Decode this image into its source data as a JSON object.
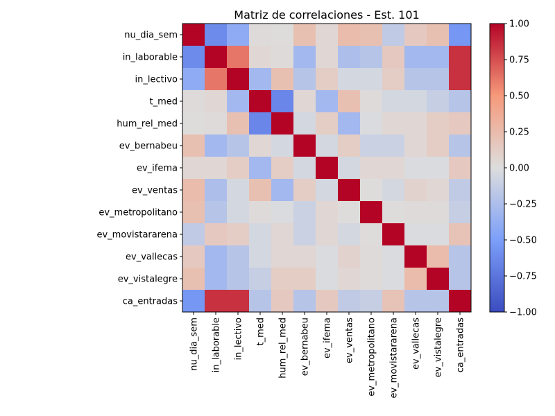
{
  "chart_data": {
    "type": "heatmap",
    "title": "Matriz de correlaciones - Est. 101",
    "xlabel": "",
    "ylabel": "",
    "colormap": "coolwarm",
    "vmin": -1.0,
    "vmax": 1.0,
    "colorbar_ticks": [
      "1.00",
      "0.75",
      "0.50",
      "0.25",
      "0.00",
      "−0.25",
      "−0.50",
      "−0.75",
      "−1.00"
    ],
    "colorbar_tick_values": [
      1.0,
      0.75,
      0.5,
      0.25,
      0.0,
      -0.25,
      -0.5,
      -0.75,
      -1.0
    ],
    "labels": [
      "nu_dia_sem",
      "in_laborable",
      "in_lectivo",
      "t_med",
      "hum_rel_med",
      "ev_bernabeu",
      "ev_ifema",
      "ev_ventas",
      "ev_metropolitano",
      "ev_movistararena",
      "ev_vallecas",
      "ev_vistalegre",
      "ca_entradas"
    ],
    "matrix": [
      [
        1.0,
        -0.62,
        -0.4,
        0.02,
        0.01,
        0.22,
        0.05,
        0.25,
        0.22,
        -0.15,
        0.15,
        0.22,
        -0.55
      ],
      [
        -0.62,
        1.0,
        0.62,
        0.05,
        0.02,
        -0.3,
        0.05,
        -0.25,
        -0.2,
        0.15,
        -0.3,
        -0.3,
        0.85
      ],
      [
        -0.4,
        0.62,
        1.0,
        -0.3,
        0.22,
        -0.2,
        0.12,
        -0.05,
        -0.05,
        0.12,
        -0.2,
        -0.2,
        0.85
      ],
      [
        0.02,
        0.05,
        -0.3,
        1.0,
        -0.65,
        0.05,
        -0.3,
        0.22,
        0.02,
        -0.05,
        -0.05,
        -0.12,
        -0.2
      ],
      [
        0.01,
        0.02,
        0.22,
        -0.65,
        1.0,
        -0.05,
        0.12,
        -0.3,
        -0.02,
        0.05,
        0.05,
        0.12,
        0.15
      ],
      [
        0.22,
        -0.3,
        -0.2,
        0.05,
        -0.05,
        1.0,
        -0.05,
        0.12,
        -0.1,
        -0.1,
        0.05,
        0.12,
        -0.2
      ],
      [
        0.05,
        0.05,
        0.12,
        -0.3,
        0.12,
        -0.05,
        1.0,
        -0.05,
        0.05,
        0.05,
        -0.02,
        -0.02,
        0.15
      ],
      [
        0.25,
        -0.25,
        -0.05,
        0.22,
        -0.3,
        0.12,
        -0.05,
        1.0,
        0.01,
        -0.05,
        0.08,
        0.05,
        -0.15
      ],
      [
        0.22,
        -0.2,
        -0.05,
        0.02,
        -0.02,
        -0.1,
        0.05,
        0.01,
        1.0,
        0.01,
        0.02,
        0.02,
        -0.12
      ],
      [
        -0.15,
        0.15,
        0.12,
        -0.05,
        0.05,
        -0.1,
        0.05,
        -0.05,
        0.01,
        1.0,
        -0.02,
        -0.02,
        0.2
      ],
      [
        0.15,
        -0.3,
        -0.2,
        -0.05,
        0.05,
        0.05,
        -0.02,
        0.08,
        0.02,
        -0.02,
        1.0,
        0.25,
        -0.2
      ],
      [
        0.22,
        -0.3,
        -0.2,
        -0.12,
        0.12,
        0.12,
        -0.02,
        0.05,
        0.02,
        -0.02,
        0.25,
        1.0,
        -0.2
      ],
      [
        -0.55,
        0.85,
        0.85,
        -0.2,
        0.15,
        -0.2,
        0.15,
        -0.15,
        -0.12,
        0.2,
        -0.2,
        -0.2,
        1.0
      ]
    ]
  }
}
